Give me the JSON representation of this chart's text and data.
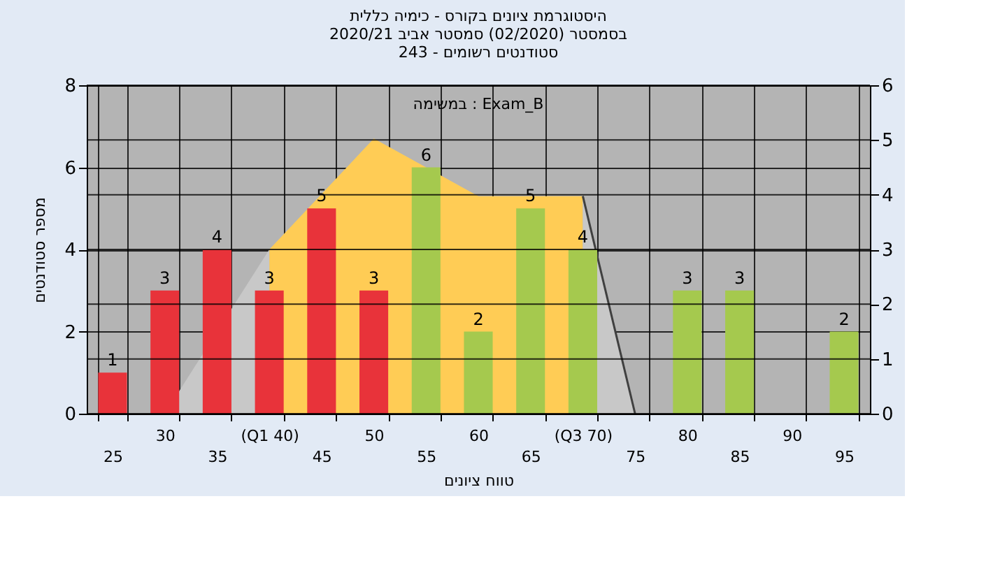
{
  "chart_data": {
    "type": "bar",
    "title": [
      "היסטוגרמת ציונים בקורס - כימיה כללית",
      "בסמסטר (02/2020) סמסטר אביב 2020/21",
      "סטודנטים רשומים - 243"
    ],
    "xlabel": "טווח ציונים",
    "ylabel": "מספר סטודנטים",
    "annotations": [
      "במשימה : Exam_B"
    ],
    "categories": [
      "25",
      "30",
      "35",
      "(Q1 40)",
      "45",
      "50",
      "55",
      "60",
      "65",
      "(Q3 70)",
      "75",
      "80",
      "85",
      "90",
      "95"
    ],
    "series": [
      {
        "type": "area",
        "color": "#ffcc55",
        "x": [
          "(Q1 40)",
          "50",
          "60",
          "(Q3 70)"
        ],
        "values": [
          4.0,
          6.7,
          5.3,
          5.3
        ]
      },
      {
        "type": "area",
        "color": "#c8c8c8",
        "x": [
          "30",
          "(Q1 40)"
        ],
        "values": [
          0,
          4.0
        ]
      },
      {
        "type": "area",
        "color": "#c8c8c8",
        "line_style": "solid",
        "x": [
          "(Q3 70)",
          "75"
        ],
        "values": [
          5.3,
          0
        ]
      },
      {
        "values": [
          1,
          3,
          4,
          3,
          5,
          3,
          6,
          2,
          5,
          4,
          0,
          3,
          3,
          0,
          2
        ],
        "colors": [
          "#e8333a",
          "#e8333a",
          "#e8333a",
          "#e8333a",
          "#e8333a",
          "#e8333a",
          "#a5c94e",
          "#a5c94e",
          "#a5c94e",
          "#a5c94e",
          "#a5c94e",
          "#a5c94e",
          "#a5c94e",
          "#a5c94e",
          "#a5c94e"
        ],
        "value_labels": [
          "1",
          "3",
          "4",
          "3",
          "5",
          "3",
          "6",
          "2",
          "5",
          "4",
          null,
          "3",
          "3",
          null,
          "2"
        ]
      }
    ],
    "ylim": [
      0,
      8
    ],
    "yticks": [
      0,
      2,
      4,
      6,
      8
    ],
    "y2lim": [
      0,
      6
    ],
    "y2ticks": [
      0,
      1,
      2,
      3,
      4,
      5,
      6
    ],
    "grid": true
  }
}
